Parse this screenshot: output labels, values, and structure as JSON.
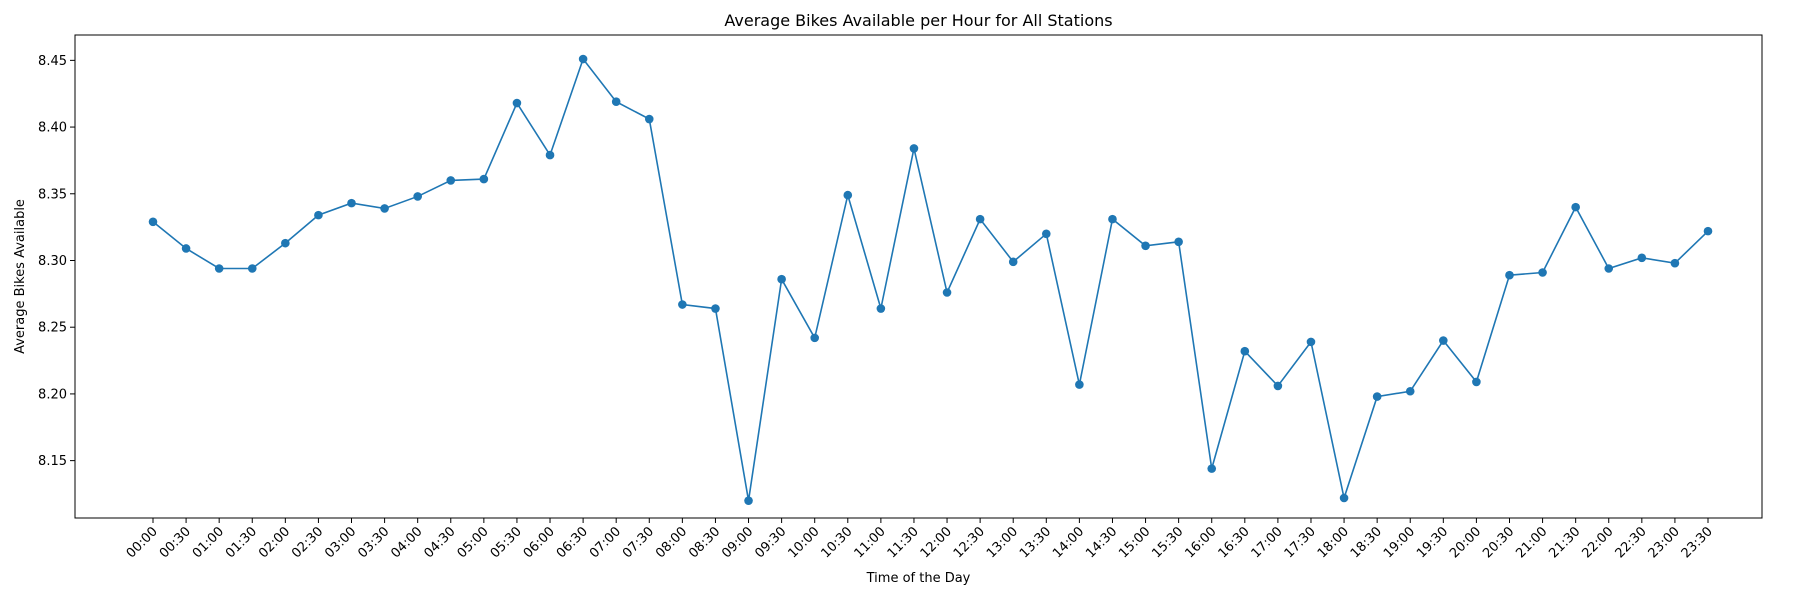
{
  "chart_data": {
    "type": "line",
    "title": "Average Bikes Available per Hour for All Stations",
    "xlabel": "Time of the Day",
    "ylabel": "Average Bikes Available",
    "ylim": [
      8.107,
      8.469
    ],
    "yticks": [
      "8.15",
      "8.20",
      "8.25",
      "8.30",
      "8.35",
      "8.40",
      "8.45"
    ],
    "grid": false,
    "color": "#1f77b4",
    "categories": [
      "00:00",
      "00:30",
      "01:00",
      "01:30",
      "02:00",
      "02:30",
      "03:00",
      "03:30",
      "04:00",
      "04:30",
      "05:00",
      "05:30",
      "06:00",
      "06:30",
      "07:00",
      "07:30",
      "08:00",
      "08:30",
      "09:00",
      "09:30",
      "10:00",
      "10:30",
      "11:00",
      "11:30",
      "12:00",
      "12:30",
      "13:00",
      "13:30",
      "14:00",
      "14:30",
      "15:00",
      "15:30",
      "16:00",
      "16:30",
      "17:00",
      "17:30",
      "18:00",
      "18:30",
      "19:00",
      "19:30",
      "20:00",
      "20:30",
      "21:00",
      "21:30",
      "22:00",
      "22:30",
      "23:00",
      "23:30"
    ],
    "values": [
      8.329,
      8.309,
      8.294,
      8.294,
      8.313,
      8.334,
      8.343,
      8.339,
      8.348,
      8.36,
      8.361,
      8.418,
      8.379,
      8.451,
      8.419,
      8.406,
      8.267,
      8.264,
      8.12,
      8.286,
      8.242,
      8.349,
      8.264,
      8.384,
      8.276,
      8.331,
      8.299,
      8.32,
      8.207,
      8.331,
      8.311,
      8.314,
      8.144,
      8.232,
      8.206,
      8.239,
      8.122,
      8.198,
      8.202,
      8.24,
      8.209,
      8.289,
      8.291,
      8.34,
      8.294,
      8.302,
      8.298,
      8.322
    ]
  }
}
